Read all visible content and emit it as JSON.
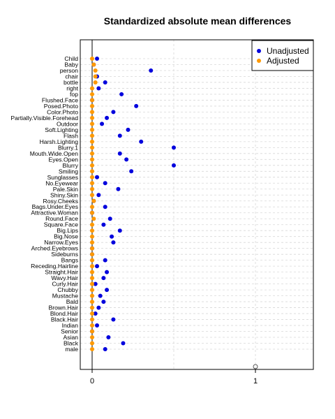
{
  "chart_data": {
    "type": "scatter",
    "title": "Standardized absolute mean differences",
    "xlabel": "",
    "ylabel": "",
    "xlim": [
      -0.12,
      1.35
    ],
    "x_ticks": [
      0,
      1
    ],
    "grid": true,
    "legend_position": "top-right",
    "colors": {
      "Unadjusted": "#0000dd",
      "Adjusted": "#ff9900"
    },
    "categories": [
      "Child",
      "Baby",
      "person",
      "chair",
      "bottle",
      "right",
      "fop",
      "Flushed.Face",
      "Posed.Photo",
      "Color.Photo",
      "Partially.Visible.Forehead",
      "Outdoor",
      "Soft.Lighting",
      "Flash",
      "Harsh.Lighting",
      "Blurry.1",
      "Mouth.Wide.Open",
      "Eyes.Open",
      "Blurry",
      "Smiling",
      "Sunglasses",
      "No.Eyewear",
      "Pale.Skin",
      "Shiny.Skin",
      "Rosy.Cheeks",
      "Bags.Under.Eyes",
      "Attractive.Woman",
      "Round.Face",
      "Square.Face",
      "Big.Lips",
      "Big.Nose",
      "Narrow.Eyes",
      "Arched.Eyebrows",
      "Sideburns",
      "Bangs",
      "Receding.Hairline",
      "Straight.Hair",
      "Wavy.Hair",
      "Curly.Hair",
      "Chubby",
      "Mustache",
      "Bald",
      "Brown.Hair",
      "Blond.Hair",
      "Black.Hair",
      "Indian",
      "Senior",
      "Asian",
      "Black",
      "male"
    ],
    "series": [
      {
        "name": "Unadjusted",
        "values": [
          0.03,
          0.01,
          0.36,
          0.03,
          0.08,
          0.04,
          0.18,
          0.0,
          0.27,
          0.13,
          0.09,
          0.06,
          0.22,
          0.17,
          0.3,
          0.5,
          0.17,
          0.21,
          0.5,
          0.24,
          0.03,
          0.08,
          0.16,
          0.04,
          0.01,
          0.08,
          0.0,
          0.11,
          0.07,
          0.17,
          0.12,
          0.13,
          0.0,
          0.0,
          0.08,
          0.03,
          0.09,
          0.07,
          0.02,
          0.09,
          0.05,
          0.07,
          0.04,
          0.02,
          0.13,
          0.03,
          0.0,
          0.1,
          0.19,
          0.08
        ]
      },
      {
        "name": "Adjusted",
        "values": [
          0.0,
          0.01,
          0.02,
          0.02,
          0.02,
          0.0,
          0.0,
          0.0,
          0.0,
          0.0,
          0.0,
          0.0,
          0.0,
          0.0,
          0.0,
          0.0,
          0.0,
          0.0,
          0.0,
          0.0,
          0.0,
          0.0,
          0.0,
          0.0,
          0.01,
          0.0,
          0.0,
          0.01,
          0.0,
          0.0,
          0.0,
          0.0,
          0.0,
          0.0,
          0.0,
          0.0,
          0.0,
          0.0,
          0.0,
          0.0,
          0.0,
          0.0,
          0.0,
          0.0,
          0.0,
          0.0,
          0.0,
          0.0,
          0.0,
          0.0
        ]
      }
    ],
    "extra_points": [
      {
        "series": "Adjusted",
        "x": 1.0,
        "y": "below-axis",
        "style": "open-circle"
      }
    ]
  }
}
